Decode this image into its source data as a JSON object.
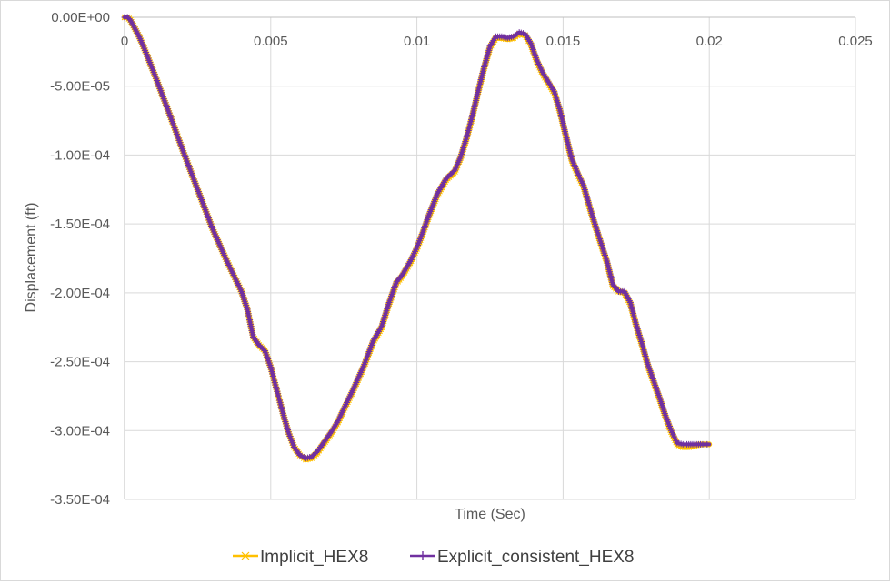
{
  "chart_data": {
    "type": "scatter",
    "title": "",
    "xlabel": "Time (Sec)",
    "ylabel": "Displacement (ft)",
    "xlim": [
      0,
      0.025
    ],
    "ylim": [
      -0.00035,
      0
    ],
    "x_ticks": [
      0,
      0.005,
      0.01,
      0.015,
      0.02,
      0.025
    ],
    "x_tick_labels": [
      "0",
      "0.005",
      "0.01",
      "0.015",
      "0.02",
      "0.025"
    ],
    "y_ticks": [
      0,
      -5e-05,
      -0.0001,
      -0.00015,
      -0.0002,
      -0.00025,
      -0.0003,
      -0.00035
    ],
    "y_tick_labels": [
      "0.00E+00",
      "-5.00E-05",
      "-1.00E-04",
      "-1.50E-04",
      "-2.00E-04",
      "-2.50E-04",
      "-3.00E-04",
      "-3.50E-04"
    ],
    "grid": true,
    "legend_position": "bottom",
    "series": [
      {
        "name": "Implicit_HEX8",
        "color": "#ffc000",
        "marker": "x",
        "x": [
          0,
          0.0001,
          0.0002,
          0.0003,
          0.0005,
          0.0007,
          0.001,
          0.0015,
          0.002,
          0.0025,
          0.003,
          0.0035,
          0.004,
          0.0042,
          0.0044,
          0.0046,
          0.0048,
          0.005,
          0.0052,
          0.0054,
          0.0056,
          0.0058,
          0.006,
          0.0062,
          0.0064,
          0.0066,
          0.0067,
          0.0069,
          0.0071,
          0.0073,
          0.0075,
          0.0078,
          0.0082,
          0.0085,
          0.0088,
          0.009,
          0.0093,
          0.0095,
          0.0098,
          0.01,
          0.0102,
          0.0104,
          0.0107,
          0.011,
          0.0113,
          0.0115,
          0.0117,
          0.0119,
          0.0121,
          0.0123,
          0.0125,
          0.0127,
          0.0129,
          0.0131,
          0.0133,
          0.0135,
          0.0137,
          0.0139,
          0.0141,
          0.0143,
          0.0145,
          0.0147,
          0.0149,
          0.0151,
          0.0153,
          0.0155,
          0.0157,
          0.016,
          0.0163,
          0.0165,
          0.0167,
          0.0169,
          0.0171,
          0.0173,
          0.0175,
          0.0177,
          0.0179,
          0.0181,
          0.0183,
          0.0185,
          0.0187,
          0.0189,
          0.0191,
          0.0193,
          0.0195,
          0.0197,
          0.02
        ],
        "y": [
          0,
          0,
          -2e-06,
          -6e-06,
          -1.4e-05,
          -2.4e-05,
          -4e-05,
          -6.8e-05,
          -9.7e-05,
          -0.000125,
          -0.000153,
          -0.000177,
          -0.000199,
          -0.000212,
          -0.000232,
          -0.000238,
          -0.000242,
          -0.000254,
          -0.00027,
          -0.000286,
          -0.000301,
          -0.000312,
          -0.000318,
          -0.000321,
          -0.00032,
          -0.000316,
          -0.000313,
          -0.000307,
          -0.000301,
          -0.000294,
          -0.000285,
          -0.000272,
          -0.000253,
          -0.000236,
          -0.000225,
          -0.000211,
          -0.000193,
          -0.000188,
          -0.000177,
          -0.000168,
          -0.000157,
          -0.000145,
          -0.000129,
          -0.000118,
          -0.000112,
          -0.000102,
          -8.8e-05,
          -7.2e-05,
          -5.4e-05,
          -3.7e-05,
          -2.2e-05,
          -1.5e-05,
          -1.5e-05,
          -1.6e-05,
          -1.5e-05,
          -1.2e-05,
          -1.3e-05,
          -2e-05,
          -3.2e-05,
          -4.1e-05,
          -4.8e-05,
          -5.5e-05,
          -6.9e-05,
          -8.7e-05,
          -0.000104,
          -0.000114,
          -0.000123,
          -0.000145,
          -0.000165,
          -0.000178,
          -0.000195,
          -0.000199,
          -0.0002,
          -0.000208,
          -0.000224,
          -0.000238,
          -0.000253,
          -0.000265,
          -0.000277,
          -0.00029,
          -0.000301,
          -0.00031,
          -0.000312,
          -0.000312,
          -0.000311,
          -0.00031,
          -0.00031
        ]
      },
      {
        "name": "Explicit_consistent_HEX8",
        "color": "#7030a0",
        "marker": "+",
        "x": [
          0,
          0.0001,
          0.0002,
          0.0003,
          0.0005,
          0.0007,
          0.001,
          0.0015,
          0.002,
          0.0025,
          0.003,
          0.0035,
          0.004,
          0.0042,
          0.0044,
          0.0046,
          0.0048,
          0.005,
          0.0052,
          0.0054,
          0.0056,
          0.0058,
          0.006,
          0.0062,
          0.0064,
          0.0066,
          0.0067,
          0.0069,
          0.0071,
          0.0073,
          0.0075,
          0.0078,
          0.0082,
          0.0085,
          0.0088,
          0.009,
          0.0093,
          0.0095,
          0.0098,
          0.01,
          0.0102,
          0.0104,
          0.0107,
          0.011,
          0.0113,
          0.0115,
          0.0117,
          0.0119,
          0.0121,
          0.0123,
          0.0125,
          0.0127,
          0.0129,
          0.0131,
          0.0133,
          0.0135,
          0.0137,
          0.0139,
          0.0141,
          0.0143,
          0.0145,
          0.0147,
          0.0149,
          0.0151,
          0.0153,
          0.0155,
          0.0157,
          0.016,
          0.0163,
          0.0165,
          0.0167,
          0.0169,
          0.0171,
          0.0173,
          0.0175,
          0.0177,
          0.0179,
          0.0181,
          0.0183,
          0.0185,
          0.0187,
          0.0189,
          0.0191,
          0.0193,
          0.0195,
          0.0197,
          0.02
        ],
        "y": [
          0,
          0,
          -2e-06,
          -6e-06,
          -1.4e-05,
          -2.4e-05,
          -4e-05,
          -6.8e-05,
          -9.7e-05,
          -0.000125,
          -0.000153,
          -0.000177,
          -0.000199,
          -0.000212,
          -0.000232,
          -0.000238,
          -0.000242,
          -0.000254,
          -0.00027,
          -0.000286,
          -0.000301,
          -0.000312,
          -0.000318,
          -0.00032,
          -0.000319,
          -0.000315,
          -0.000312,
          -0.000306,
          -0.0003,
          -0.000293,
          -0.000284,
          -0.000271,
          -0.000252,
          -0.000235,
          -0.000224,
          -0.00021,
          -0.000192,
          -0.000187,
          -0.000176,
          -0.000167,
          -0.000156,
          -0.000144,
          -0.000128,
          -0.000117,
          -0.000111,
          -0.000101,
          -8.7e-05,
          -7.1e-05,
          -5.3e-05,
          -3.6e-05,
          -2.1e-05,
          -1.4e-05,
          -1.4e-05,
          -1.5e-05,
          -1.4e-05,
          -1.1e-05,
          -1.2e-05,
          -1.9e-05,
          -3.1e-05,
          -4e-05,
          -4.7e-05,
          -5.4e-05,
          -6.8e-05,
          -8.6e-05,
          -0.000103,
          -0.000113,
          -0.000122,
          -0.000144,
          -0.000164,
          -0.000177,
          -0.000194,
          -0.000199,
          -0.000199,
          -0.000207,
          -0.000223,
          -0.000237,
          -0.000252,
          -0.000264,
          -0.000276,
          -0.000289,
          -0.0003,
          -0.000309,
          -0.00031,
          -0.00031,
          -0.00031,
          -0.00031,
          -0.00031
        ]
      }
    ]
  }
}
